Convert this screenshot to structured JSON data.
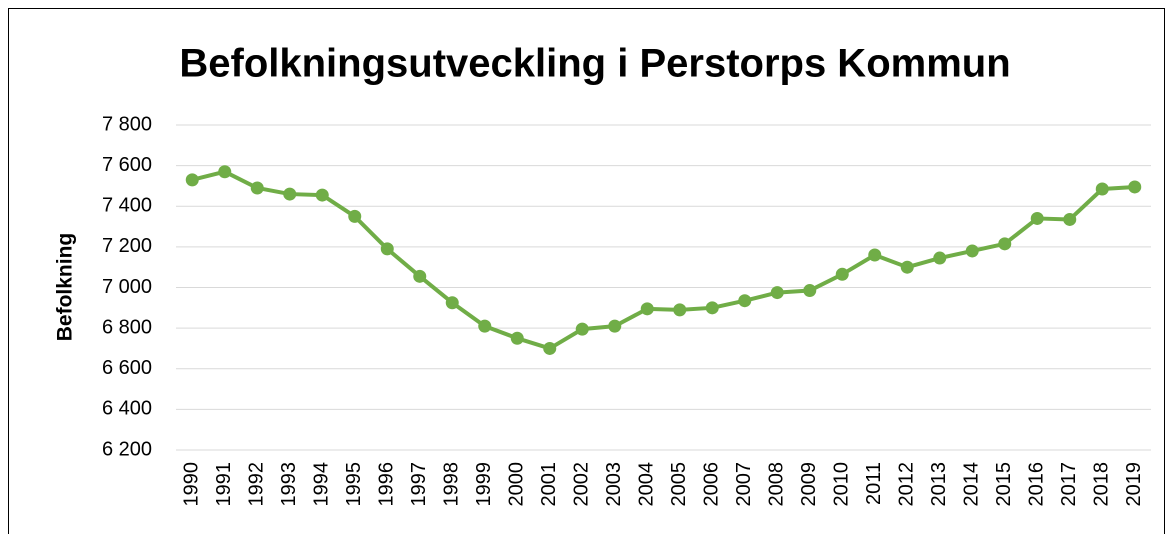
{
  "chart_data": {
    "type": "line",
    "title": "Befolkningsutveckling i Perstorps Kommun",
    "y_label": "Befolkning",
    "categories": [
      "1990",
      "1991",
      "1992",
      "1993",
      "1994",
      "1995",
      "1996",
      "1997",
      "1998",
      "1999",
      "2000",
      "2001",
      "2002",
      "2003",
      "2004",
      "2005",
      "2006",
      "2007",
      "2008",
      "2009",
      "2010",
      "2011",
      "2012",
      "2013",
      "2014",
      "2015",
      "2016",
      "2017",
      "2018",
      "2019"
    ],
    "series": [
      {
        "name": "Befolkning",
        "color": "#70ad47",
        "values": [
          7530,
          7570,
          7490,
          7460,
          7455,
          7350,
          7190,
          7055,
          6925,
          6810,
          6750,
          6700,
          6795,
          6810,
          6895,
          6890,
          6900,
          6935,
          6975,
          6985,
          7065,
          7160,
          7100,
          7145,
          7180,
          7215,
          7340,
          7335,
          7485,
          7495
        ]
      }
    ],
    "ylim": [
      6200,
      7800
    ],
    "yticks": [
      {
        "value": 6200,
        "label": "6 200"
      },
      {
        "value": 6400,
        "label": "6 400"
      },
      {
        "value": 6600,
        "label": "6 600"
      },
      {
        "value": 6800,
        "label": "6 800"
      },
      {
        "value": 7000,
        "label": "7 000"
      },
      {
        "value": 7200,
        "label": "7 200"
      },
      {
        "value": 7400,
        "label": "7 400"
      },
      {
        "value": 7600,
        "label": "7 600"
      },
      {
        "value": 7800,
        "label": "7 800"
      }
    ],
    "grid": true
  }
}
